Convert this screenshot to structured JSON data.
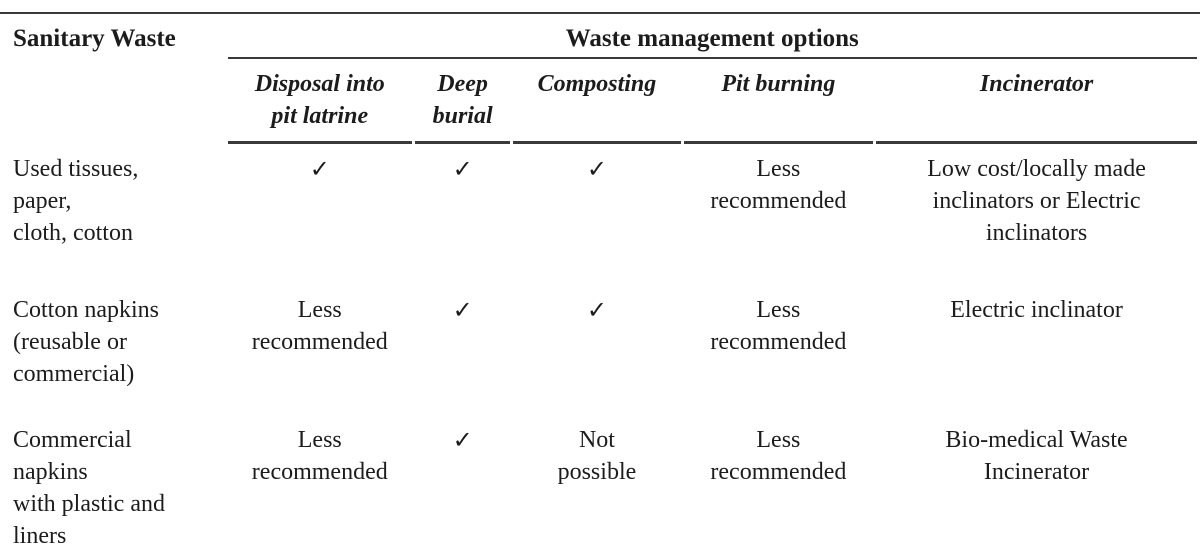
{
  "table": {
    "corner_header": "Sanitary Waste",
    "group_header": "Waste management options",
    "columns": [
      "Disposal into\npit latrine",
      "Deep\nburial",
      "Composting",
      "Pit burning",
      "Incinerator"
    ],
    "rows": [
      {
        "label": "Used tissues,\npaper,\ncloth, cotton",
        "cells": [
          "✓",
          "✓",
          "✓",
          "Less\nrecommended",
          "Low cost/locally made\ninclinators or Electric\ninclinators"
        ]
      },
      {
        "label": "Cotton napkins\n(reusable or\ncommercial)",
        "cells": [
          "Less\nrecommended",
          "✓",
          "✓",
          "Less\nrecommended",
          "Electric inclinator"
        ]
      },
      {
        "label": "Commercial\nnapkins\nwith plastic and\nliners",
        "cells": [
          "Less\nrecommended",
          "✓",
          "Not\npossible",
          "Less\nrecommended",
          "Bio-medical Waste\nIncinerator"
        ]
      }
    ]
  },
  "colors": {
    "rule": "#3a3a3a",
    "text": "#1c1c1c",
    "background": "#ffffff"
  }
}
